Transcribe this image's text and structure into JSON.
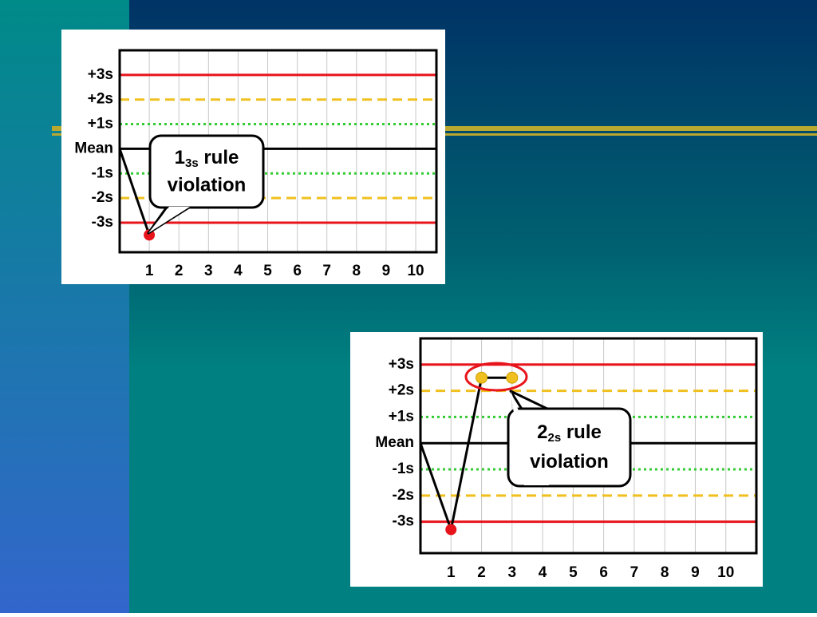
{
  "chart_data": [
    {
      "type": "line",
      "x": [
        0,
        1
      ],
      "xlim": [
        0,
        10.7
      ],
      "xticks": [
        1,
        2,
        3,
        4,
        5,
        6,
        7,
        8,
        9,
        10
      ],
      "ylim": [
        -4.2,
        4
      ],
      "yticks": [
        {
          "value": 3,
          "label": "+3s"
        },
        {
          "value": 2,
          "label": "+2s"
        },
        {
          "value": 1,
          "label": "+1s"
        },
        {
          "value": 0,
          "label": "Mean"
        },
        {
          "value": -1,
          "label": "-1s"
        },
        {
          "value": -2,
          "label": "-2s"
        },
        {
          "value": -3,
          "label": "-3s"
        }
      ],
      "line_colors": [
        "#e8141b",
        "#f0c020",
        "#33cc33",
        "#000000",
        "#33cc33",
        "#f0c020",
        "#e8141b"
      ],
      "line_styles": [
        "solid",
        "dashed",
        "dotted",
        "solid",
        "dotted",
        "dashed",
        "solid"
      ],
      "series": [
        {
          "color": "#000000",
          "values": [
            0,
            -3.5
          ],
          "marker_colors": [
            null,
            "#e8141b"
          ]
        }
      ],
      "annotation": {
        "main": "1",
        "sub": "3s",
        "rest": " rule",
        "line2": "violation"
      }
    },
    {
      "type": "line",
      "x": [
        0,
        1,
        2,
        3
      ],
      "xlim": [
        0,
        11
      ],
      "xticks": [
        1,
        2,
        3,
        4,
        5,
        6,
        7,
        8,
        9,
        10
      ],
      "ylim": [
        -4.2,
        4
      ],
      "yticks": [
        {
          "value": 3,
          "label": "+3s"
        },
        {
          "value": 2,
          "label": "+2s"
        },
        {
          "value": 1,
          "label": "+1s"
        },
        {
          "value": 0,
          "label": "Mean"
        },
        {
          "value": -1,
          "label": "-1s"
        },
        {
          "value": -2,
          "label": "-2s"
        },
        {
          "value": -3,
          "label": "-3s"
        }
      ],
      "line_colors": [
        "#e8141b",
        "#f0c020",
        "#33cc33",
        "#000000",
        "#33cc33",
        "#f0c020",
        "#e8141b"
      ],
      "line_styles": [
        "solid",
        "dashed",
        "dotted",
        "solid",
        "dotted",
        "dashed",
        "solid"
      ],
      "series": [
        {
          "color": "#000000",
          "values": [
            0,
            -3.3,
            2.5,
            2.5
          ],
          "marker_colors": [
            null,
            "#e8141b",
            "#f0c020",
            "#f0c020"
          ]
        }
      ],
      "annotation": {
        "main": "2",
        "sub": "2s",
        "rest": " rule",
        "line2": "violation"
      }
    }
  ]
}
